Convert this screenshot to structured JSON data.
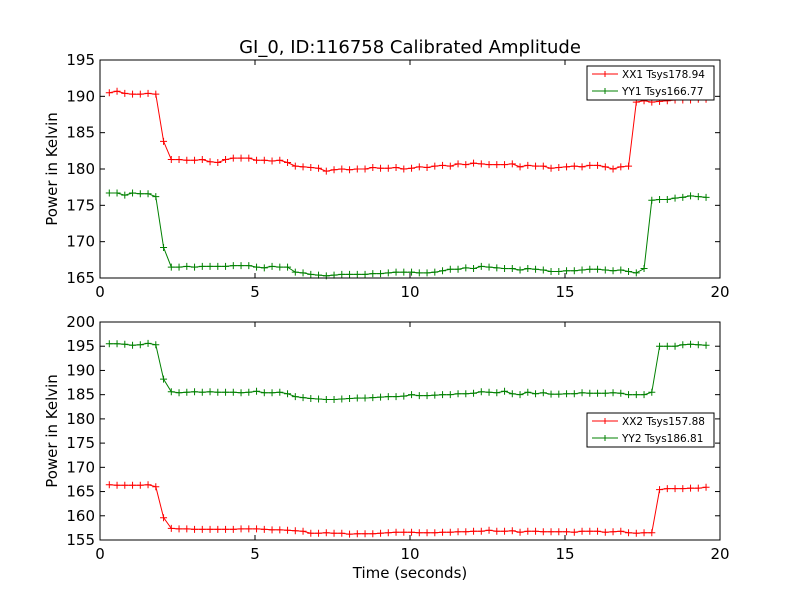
{
  "figure": {
    "title": "GI_0, ID:116758 Calibrated Amplitude",
    "xlabel": "Time (seconds)"
  },
  "chart_data": [
    {
      "type": "line",
      "title": "GI_0, ID:116758 Calibrated Amplitude",
      "xlabel": "",
      "ylabel": "Power in Kelvin",
      "xlim": [
        0,
        20
      ],
      "ylim": [
        165,
        195
      ],
      "xticks": [
        "0",
        "5",
        "10",
        "15",
        "20"
      ],
      "yticks": [
        "165",
        "170",
        "175",
        "180",
        "185",
        "190",
        "195"
      ],
      "legend_position": "top-right",
      "grid": false,
      "series": [
        {
          "name": "XX1 Tsys178.94",
          "color": "#ff0000",
          "marker": "plus",
          "x": [
            0.3,
            0.55,
            0.8,
            1.05,
            1.3,
            1.55,
            1.8,
            2.05,
            2.3,
            2.55,
            2.8,
            3.05,
            3.3,
            3.55,
            3.8,
            4.05,
            4.3,
            4.55,
            4.8,
            5.05,
            5.3,
            5.55,
            5.8,
            6.05,
            6.3,
            6.55,
            6.8,
            7.05,
            7.3,
            7.55,
            7.8,
            8.05,
            8.3,
            8.55,
            8.8,
            9.05,
            9.3,
            9.55,
            9.8,
            10.05,
            10.3,
            10.55,
            10.8,
            11.05,
            11.3,
            11.55,
            11.8,
            12.05,
            12.3,
            12.55,
            12.8,
            13.05,
            13.3,
            13.55,
            13.8,
            14.05,
            14.3,
            14.55,
            14.8,
            15.05,
            15.3,
            15.55,
            15.8,
            16.05,
            16.3,
            16.55,
            16.8,
            17.05,
            17.3,
            17.55,
            17.8,
            18.05,
            18.3,
            18.55,
            18.8,
            19.05,
            19.3,
            19.55
          ],
          "y": [
            190.5,
            190.7,
            190.4,
            190.3,
            190.3,
            190.4,
            190.3,
            183.8,
            181.3,
            181.3,
            181.2,
            181.2,
            181.3,
            181.0,
            180.9,
            181.3,
            181.5,
            181.5,
            181.5,
            181.2,
            181.2,
            181.1,
            181.2,
            180.9,
            180.4,
            180.3,
            180.2,
            180.1,
            179.7,
            179.9,
            180.0,
            179.9,
            180.0,
            180.0,
            180.2,
            180.1,
            180.1,
            180.2,
            180.0,
            180.1,
            180.3,
            180.2,
            180.4,
            180.5,
            180.4,
            180.7,
            180.6,
            180.8,
            180.7,
            180.6,
            180.6,
            180.6,
            180.7,
            180.3,
            180.5,
            180.4,
            180.4,
            180.1,
            180.2,
            180.3,
            180.4,
            180.3,
            180.5,
            180.5,
            180.3,
            180.0,
            180.3,
            180.4,
            189.2,
            189.4,
            189.2,
            189.3,
            189.4,
            189.5,
            189.5,
            189.5,
            189.6,
            189.6
          ]
        },
        {
          "name": "YY1 Tsys166.77",
          "color": "#008000",
          "marker": "plus",
          "x": [
            0.3,
            0.55,
            0.8,
            1.05,
            1.3,
            1.55,
            1.8,
            2.05,
            2.3,
            2.55,
            2.8,
            3.05,
            3.3,
            3.55,
            3.8,
            4.05,
            4.3,
            4.55,
            4.8,
            5.05,
            5.3,
            5.55,
            5.8,
            6.05,
            6.3,
            6.55,
            6.8,
            7.05,
            7.3,
            7.55,
            7.8,
            8.05,
            8.3,
            8.55,
            8.8,
            9.05,
            9.3,
            9.55,
            9.8,
            10.05,
            10.3,
            10.55,
            10.8,
            11.05,
            11.3,
            11.55,
            11.8,
            12.05,
            12.3,
            12.55,
            12.8,
            13.05,
            13.3,
            13.55,
            13.8,
            14.05,
            14.3,
            14.55,
            14.8,
            15.05,
            15.3,
            15.55,
            15.8,
            16.05,
            16.3,
            16.55,
            16.8,
            17.05,
            17.3,
            17.55,
            17.8,
            18.05,
            18.3,
            18.55,
            18.8,
            19.05,
            19.3,
            19.55
          ],
          "y": [
            176.7,
            176.7,
            176.4,
            176.7,
            176.6,
            176.6,
            176.2,
            169.2,
            166.5,
            166.5,
            166.6,
            166.5,
            166.6,
            166.6,
            166.6,
            166.6,
            166.7,
            166.7,
            166.7,
            166.5,
            166.4,
            166.6,
            166.5,
            166.5,
            165.8,
            165.7,
            165.5,
            165.4,
            165.3,
            165.4,
            165.5,
            165.5,
            165.5,
            165.5,
            165.6,
            165.6,
            165.7,
            165.8,
            165.8,
            165.8,
            165.7,
            165.7,
            165.8,
            166.0,
            166.2,
            166.2,
            166.4,
            166.3,
            166.6,
            166.5,
            166.4,
            166.3,
            166.3,
            166.1,
            166.3,
            166.2,
            166.1,
            165.9,
            165.9,
            166.0,
            166.0,
            166.1,
            166.2,
            166.2,
            166.1,
            166.0,
            166.1,
            165.9,
            165.7,
            166.3,
            175.7,
            175.8,
            175.8,
            176.0,
            176.1,
            176.3,
            176.2,
            176.1
          ]
        }
      ]
    },
    {
      "type": "line",
      "title": "",
      "xlabel": "Time (seconds)",
      "ylabel": "Power in Kelvin",
      "xlim": [
        0,
        20
      ],
      "ylim": [
        155,
        200
      ],
      "xticks": [
        "0",
        "5",
        "10",
        "15",
        "20"
      ],
      "yticks": [
        "155",
        "160",
        "165",
        "170",
        "175",
        "180",
        "185",
        "190",
        "195",
        "200"
      ],
      "legend_position": "center-right",
      "grid": false,
      "series": [
        {
          "name": "XX2 Tsys157.88",
          "color": "#ff0000",
          "marker": "plus",
          "x": [
            0.3,
            0.55,
            0.8,
            1.05,
            1.3,
            1.55,
            1.8,
            2.05,
            2.3,
            2.55,
            2.8,
            3.05,
            3.3,
            3.55,
            3.8,
            4.05,
            4.3,
            4.55,
            4.8,
            5.05,
            5.3,
            5.55,
            5.8,
            6.05,
            6.3,
            6.55,
            6.8,
            7.05,
            7.3,
            7.55,
            7.8,
            8.05,
            8.3,
            8.55,
            8.8,
            9.05,
            9.3,
            9.55,
            9.8,
            10.05,
            10.3,
            10.55,
            10.8,
            11.05,
            11.3,
            11.55,
            11.8,
            12.05,
            12.3,
            12.55,
            12.8,
            13.05,
            13.3,
            13.55,
            13.8,
            14.05,
            14.3,
            14.55,
            14.8,
            15.05,
            15.3,
            15.55,
            15.8,
            16.05,
            16.3,
            16.55,
            16.8,
            17.05,
            17.3,
            17.55,
            17.8,
            18.05,
            18.3,
            18.55,
            18.8,
            19.05,
            19.3,
            19.55
          ],
          "y": [
            166.4,
            166.3,
            166.3,
            166.3,
            166.3,
            166.4,
            166.0,
            159.6,
            157.4,
            157.3,
            157.3,
            157.2,
            157.2,
            157.2,
            157.2,
            157.2,
            157.2,
            157.3,
            157.3,
            157.3,
            157.2,
            157.1,
            157.1,
            157.0,
            156.9,
            156.8,
            156.4,
            156.4,
            156.5,
            156.4,
            156.4,
            156.2,
            156.3,
            156.3,
            156.3,
            156.4,
            156.5,
            156.6,
            156.6,
            156.6,
            156.5,
            156.5,
            156.5,
            156.6,
            156.6,
            156.7,
            156.7,
            156.8,
            156.8,
            157.0,
            156.8,
            156.8,
            156.9,
            156.6,
            156.8,
            156.8,
            156.7,
            156.7,
            156.7,
            156.7,
            156.6,
            156.8,
            156.8,
            156.8,
            156.6,
            156.7,
            156.8,
            156.5,
            156.4,
            156.5,
            156.5,
            165.4,
            165.6,
            165.6,
            165.6,
            165.7,
            165.7,
            165.9
          ]
        },
        {
          "name": "YY2 Tsys186.81",
          "color": "#008000",
          "marker": "plus",
          "x": [
            0.3,
            0.55,
            0.8,
            1.05,
            1.3,
            1.55,
            1.8,
            2.05,
            2.3,
            2.55,
            2.8,
            3.05,
            3.3,
            3.55,
            3.8,
            4.05,
            4.3,
            4.55,
            4.8,
            5.05,
            5.3,
            5.55,
            5.8,
            6.05,
            6.3,
            6.55,
            6.8,
            7.05,
            7.3,
            7.55,
            7.8,
            8.05,
            8.3,
            8.55,
            8.8,
            9.05,
            9.3,
            9.55,
            9.8,
            10.05,
            10.3,
            10.55,
            10.8,
            11.05,
            11.3,
            11.55,
            11.8,
            12.05,
            12.3,
            12.55,
            12.8,
            13.05,
            13.3,
            13.55,
            13.8,
            14.05,
            14.3,
            14.55,
            14.8,
            15.05,
            15.3,
            15.55,
            15.8,
            16.05,
            16.3,
            16.55,
            16.8,
            17.05,
            17.3,
            17.55,
            17.8,
            18.05,
            18.3,
            18.55,
            18.8,
            19.05,
            19.3,
            19.55
          ],
          "y": [
            195.5,
            195.5,
            195.4,
            195.2,
            195.3,
            195.6,
            195.3,
            188.2,
            185.6,
            185.4,
            185.5,
            185.6,
            185.5,
            185.6,
            185.5,
            185.5,
            185.5,
            185.4,
            185.5,
            185.7,
            185.4,
            185.4,
            185.5,
            185.2,
            184.6,
            184.4,
            184.2,
            184.1,
            184.0,
            184.0,
            184.1,
            184.2,
            184.3,
            184.3,
            184.4,
            184.5,
            184.6,
            184.6,
            184.7,
            185.0,
            184.8,
            184.8,
            184.9,
            185.0,
            185.0,
            185.2,
            185.2,
            185.3,
            185.6,
            185.5,
            185.4,
            185.7,
            185.2,
            185.0,
            185.5,
            185.2,
            185.4,
            185.1,
            185.1,
            185.2,
            185.2,
            185.4,
            185.3,
            185.3,
            185.3,
            185.4,
            185.3,
            185.0,
            185.0,
            185.0,
            185.5,
            195.0,
            195.0,
            195.0,
            195.3,
            195.4,
            195.3,
            195.2
          ]
        }
      ]
    }
  ]
}
